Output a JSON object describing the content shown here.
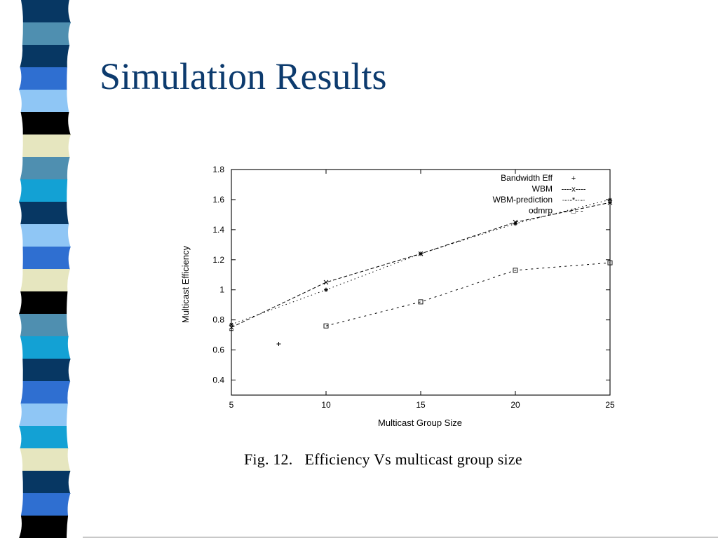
{
  "slide": {
    "title": "Simulation Results",
    "title_color": "#0d3b6e",
    "caption": "Fig. 12.   Efficiency Vs multicast group size"
  },
  "sidebar_palette": {
    "navy": "#073763",
    "blue": "#2f6fd1",
    "steel": "#4f8fb0",
    "cyan": "#13a1d4",
    "light_blue": "#8fc6f5",
    "cream": "#e6e6bf",
    "black": "#000000",
    "teal_grey": "#5d93b0"
  },
  "sidebar_sequence": [
    "navy",
    "steel",
    "navy",
    "blue",
    "light_blue",
    "black",
    "cream",
    "steel",
    "cyan",
    "navy",
    "light_blue",
    "blue",
    "cream",
    "black",
    "steel",
    "cyan",
    "navy",
    "blue",
    "light_blue",
    "cyan",
    "cream",
    "navy",
    "blue",
    "black"
  ],
  "chart_data": {
    "type": "line",
    "xlabel": "Multicast Group Size",
    "ylabel": "Multicast Efficiency",
    "xlim": [
      5,
      25
    ],
    "ylim": [
      0.3,
      1.8
    ],
    "x_ticks": [
      "5",
      "10",
      "15",
      "20",
      "25"
    ],
    "y_ticks": [
      "0.4",
      "0.6",
      "0.8",
      "1",
      "1.2",
      "1.4",
      "1.6",
      "1.8"
    ],
    "grid": false,
    "legend_position": "top-right",
    "series": [
      {
        "name": "Bandwidth Eff",
        "legend_symbol": "+",
        "x": [
          5,
          7.5,
          10,
          15,
          20,
          25
        ],
        "y": [
          0.73,
          0.64,
          1.0,
          1.24,
          1.44,
          1.58
        ]
      },
      {
        "name": "WBM",
        "legend_symbol": "----x----",
        "x": [
          5,
          10,
          15,
          20,
          25
        ],
        "y": [
          0.75,
          1.05,
          1.24,
          1.45,
          1.58
        ]
      },
      {
        "name": "WBM-prediction",
        "legend_symbol": "·-·-*-·-·",
        "x": [
          5,
          10,
          15,
          20,
          25
        ],
        "y": [
          0.77,
          1.0,
          1.24,
          1.44,
          1.6
        ]
      },
      {
        "name": "odmrp",
        "legend_symbol": "- -□- -",
        "x": [
          10,
          15,
          20,
          25
        ],
        "y": [
          0.76,
          0.92,
          1.13,
          1.18
        ]
      }
    ]
  }
}
